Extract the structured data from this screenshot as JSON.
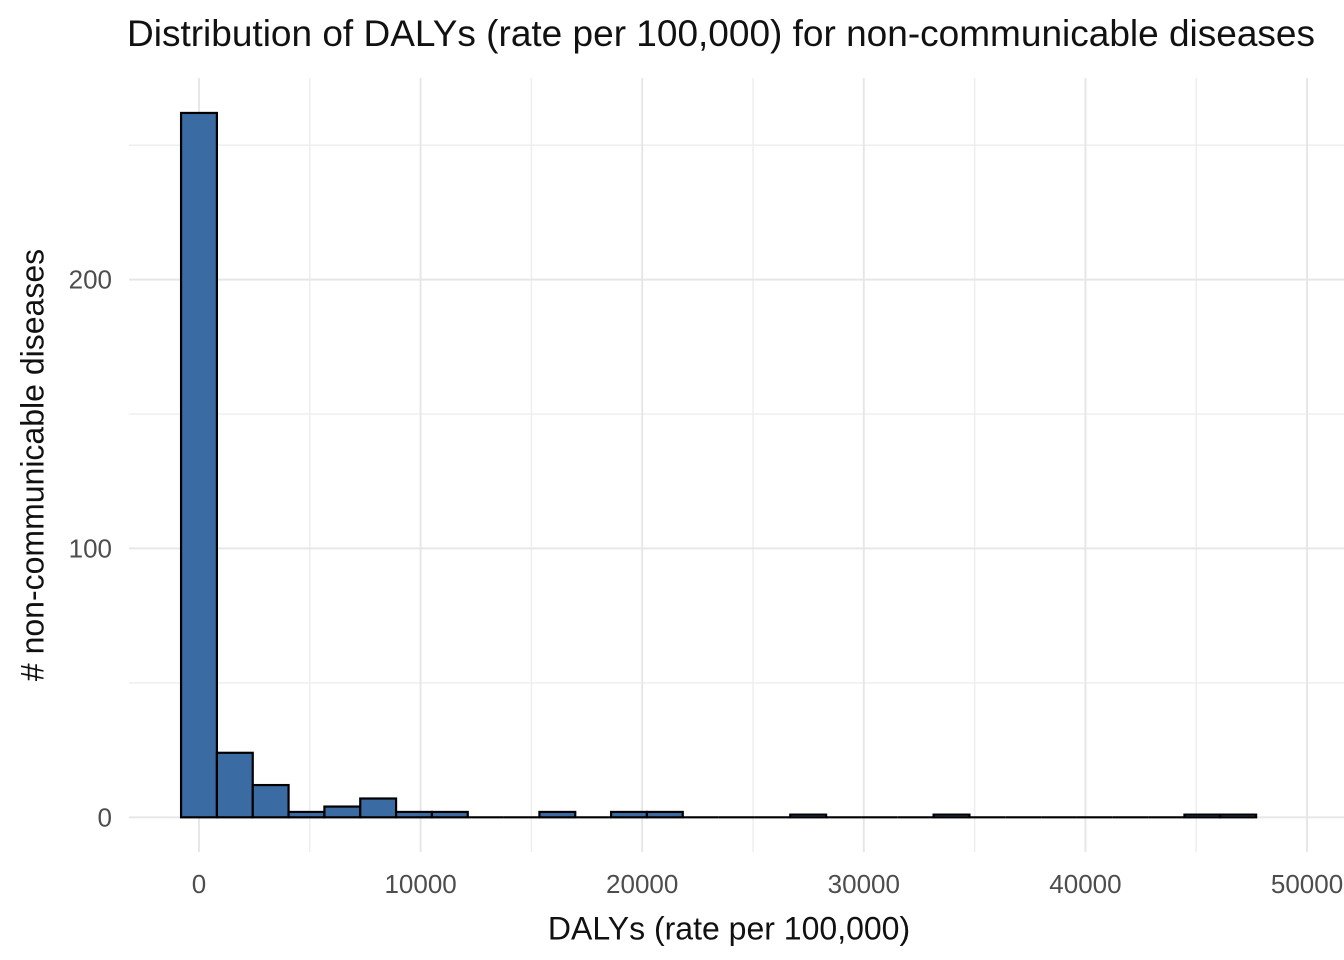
{
  "chart_data": {
    "type": "bar",
    "subtype": "histogram",
    "title": "Distribution of DALYs (rate per 100,000) for non-communicable diseases",
    "xlabel": "DALYs (rate per 100,000)",
    "ylabel": "# non-communicable diseases",
    "bin_width": 1617,
    "bin_centers": [
      0,
      1617,
      3234,
      4851,
      6468,
      8085,
      9702,
      11319,
      12936,
      14553,
      16170,
      17787,
      19404,
      21021,
      22638,
      24255,
      25872,
      27489,
      29106,
      30723,
      32340,
      33957,
      35574,
      37191,
      38808,
      40425,
      42042,
      43659,
      45276,
      46893
    ],
    "counts": [
      262,
      24,
      12,
      2,
      4,
      7,
      2,
      2,
      0,
      0,
      2,
      0,
      2,
      2,
      0,
      0,
      0,
      1,
      0,
      0,
      0,
      1,
      0,
      0,
      0,
      0,
      0,
      0,
      1,
      1
    ],
    "x_ticks": [
      0,
      10000,
      20000,
      30000,
      40000,
      50000
    ],
    "x_tick_labels": [
      "0",
      "10000",
      "20000",
      "30000",
      "40000",
      "50000"
    ],
    "x_minor_ticks": [
      5000,
      15000,
      25000,
      35000,
      45000
    ],
    "y_ticks": [
      0,
      100,
      200
    ],
    "y_tick_labels": [
      "0",
      "100",
      "200"
    ],
    "y_minor_ticks": [
      50,
      150,
      250
    ],
    "xlim": [
      -3158,
      51667
    ],
    "ylim": [
      -12.9,
      275
    ],
    "grid": true,
    "legend": "none",
    "colors": {
      "bar_fill": "#3A6CA3",
      "bar_stroke": "#000000",
      "major_grid": "#E6E6E6",
      "minor_grid": "#EDEDED",
      "tick_label": "#4D4D4D",
      "text": "#111111",
      "background": "#FFFFFF"
    }
  }
}
